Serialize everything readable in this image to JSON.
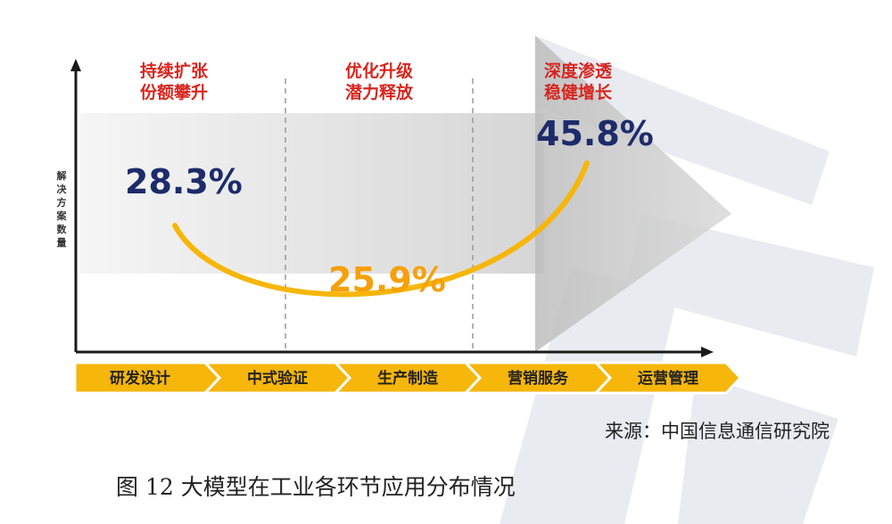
{
  "chart_data": {
    "type": "line",
    "title": "",
    "xlabel": "",
    "ylabel": "解决方案数量",
    "categories": [
      "研发设计",
      "中式验证",
      "生产制造",
      "营销服务",
      "运营管理"
    ],
    "phases": [
      {
        "line1": "持续扩张",
        "line2": "份额攀升"
      },
      {
        "line1": "优化升级",
        "line2": "潜力释放"
      },
      {
        "line1": "深度渗透",
        "line2": "稳健增长"
      }
    ],
    "data_labels": [
      {
        "text": "28.3%",
        "value": 28.3,
        "phase": 0
      },
      {
        "text": "25.9%",
        "value": 25.9,
        "phase": 1
      },
      {
        "text": "45.8%",
        "value": 45.8,
        "phase": 2
      }
    ],
    "colors": {
      "curve": "#f6b60a",
      "stage_bar": "#f6b60a",
      "phase_text": "#d7261f",
      "value_dark": "#1d2b6b",
      "value_mid": "#f6a00a"
    }
  },
  "source": "来源：中国信息通信研究院",
  "figure_caption": "图 12  大模型在工业各环节应用分布情况"
}
